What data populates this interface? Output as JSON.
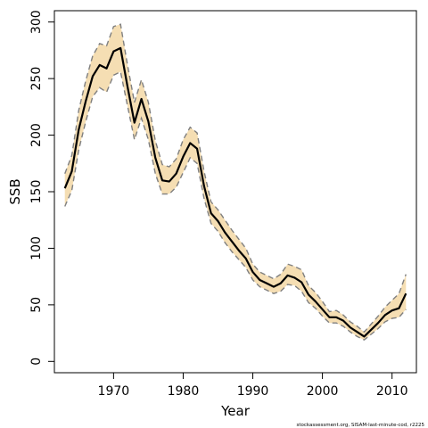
{
  "chart_data": {
    "type": "line",
    "xlabel": "Year",
    "ylabel": "SSB",
    "xlim": [
      1961.5,
      2013.5
    ],
    "ylim": [
      -10,
      310
    ],
    "xticks": [
      1970,
      1980,
      1990,
      2000,
      2010
    ],
    "yticks": [
      0,
      50,
      100,
      150,
      200,
      250,
      300
    ],
    "grid": false,
    "legend": "none",
    "credit": "stockassessment.org, SISAM-last-minute-cod, r2225",
    "colors": {
      "band": "#f5deb3",
      "estimate": "#000000",
      "bounds": "#808080"
    },
    "series": [
      {
        "role": "estimate",
        "x": [
          1963,
          1964,
          1965,
          1966,
          1967,
          1968,
          1969,
          1970,
          1971,
          1972,
          1973,
          1974,
          1975,
          1976,
          1977,
          1978,
          1979,
          1980,
          1981,
          1982,
          1983,
          1984,
          1985,
          1986,
          1987,
          1988,
          1989,
          1990,
          1991,
          1992,
          1993,
          1994,
          1995,
          1996,
          1997,
          1998,
          1999,
          2000,
          2001,
          2002,
          2003,
          2004,
          2005,
          2006,
          2007,
          2008,
          2009,
          2010,
          2011,
          2012
        ],
        "values": [
          153,
          168,
          205,
          230,
          252,
          262,
          259,
          274,
          277,
          243,
          211,
          232,
          212,
          180,
          160,
          159,
          166,
          181,
          193,
          188,
          155,
          131,
          124,
          114,
          106,
          98,
          91,
          79,
          72,
          69,
          66,
          69,
          76,
          74,
          70,
          59,
          53,
          46,
          39,
          39,
          36,
          30,
          26,
          22,
          28,
          34,
          41,
          45,
          47,
          60
        ]
      },
      {
        "role": "upper",
        "x": [
          1963,
          1964,
          1965,
          1966,
          1967,
          1968,
          1969,
          1970,
          1971,
          1972,
          1973,
          1974,
          1975,
          1976,
          1977,
          1978,
          1979,
          1980,
          1981,
          1982,
          1983,
          1984,
          1985,
          1986,
          1987,
          1988,
          1989,
          1990,
          1991,
          1992,
          1993,
          1994,
          1995,
          1996,
          1997,
          1998,
          1999,
          2000,
          2001,
          2002,
          2003,
          2004,
          2005,
          2006,
          2007,
          2008,
          2009,
          2010,
          2011,
          2012
        ],
        "values": [
          166,
          182,
          222,
          248,
          270,
          281,
          279,
          296,
          298,
          262,
          229,
          249,
          229,
          195,
          174,
          172,
          179,
          196,
          207,
          202,
          168,
          141,
          134,
          125,
          116,
          108,
          100,
          86,
          79,
          76,
          73,
          77,
          86,
          84,
          81,
          67,
          61,
          53,
          44,
          45,
          41,
          35,
          31,
          26,
          33,
          40,
          48,
          54,
          60,
          77
        ]
      },
      {
        "role": "lower",
        "x": [
          1963,
          1964,
          1965,
          1966,
          1967,
          1968,
          1969,
          1970,
          1971,
          1972,
          1973,
          1974,
          1975,
          1976,
          1977,
          1978,
          1979,
          1980,
          1981,
          1982,
          1983,
          1984,
          1985,
          1986,
          1987,
          1988,
          1989,
          1990,
          1991,
          1992,
          1993,
          1994,
          1995,
          1996,
          1997,
          1998,
          1999,
          2000,
          2001,
          2002,
          2003,
          2004,
          2005,
          2006,
          2007,
          2008,
          2009,
          2010,
          2011,
          2012
        ],
        "values": [
          137,
          151,
          187,
          212,
          234,
          242,
          238,
          253,
          256,
          226,
          196,
          215,
          196,
          166,
          148,
          148,
          154,
          167,
          180,
          175,
          144,
          122,
          115,
          105,
          97,
          90,
          83,
          72,
          66,
          63,
          60,
          62,
          68,
          67,
          62,
          52,
          47,
          40,
          34,
          34,
          31,
          26,
          22,
          19,
          24,
          29,
          35,
          38,
          39,
          46
        ]
      }
    ]
  }
}
